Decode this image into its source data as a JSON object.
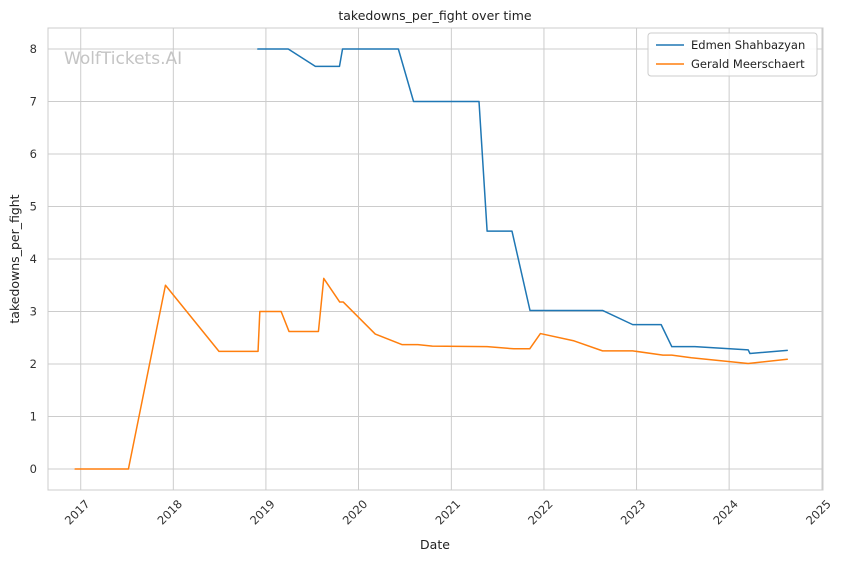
{
  "colors": {
    "background": "#ffffff",
    "grid": "#cccccc",
    "frame": "#cccccc",
    "series_1": "#1f77b4",
    "series_2": "#ff7f0e",
    "watermark": "#c4c4c4"
  },
  "watermark": "WolfTickets.AI",
  "chart_data": {
    "type": "line",
    "title": "takedowns_per_fight over time",
    "xlabel": "Date",
    "ylabel": "takedowns_per_fight",
    "x_axis": "date",
    "xlim": [
      "2016-08-25",
      "2025-01-05"
    ],
    "ylim": [
      -0.4,
      8.4
    ],
    "x_ticks": [
      "2017-01-01",
      "2018-01-01",
      "2019-01-01",
      "2020-01-01",
      "2021-01-01",
      "2022-01-01",
      "2023-01-01",
      "2024-01-01",
      "2025-01-01"
    ],
    "x_tick_labels": [
      "2017",
      "2018",
      "2019",
      "2020",
      "2021",
      "2022",
      "2023",
      "2024",
      "2025"
    ],
    "y_ticks": [
      0,
      1,
      2,
      3,
      4,
      5,
      6,
      7,
      8
    ],
    "y_tick_labels": [
      "0",
      "1",
      "2",
      "3",
      "4",
      "5",
      "6",
      "7",
      "8"
    ],
    "grid": true,
    "legend_position": "top-right",
    "series": [
      {
        "name": "Edmen Shahbazyan",
        "color": "#1f77b4",
        "points": [
          [
            "2018-11-30",
            8.0
          ],
          [
            "2019-03-30",
            8.0
          ],
          [
            "2019-07-15",
            7.67
          ],
          [
            "2019-10-18",
            7.67
          ],
          [
            "2019-10-30",
            8.0
          ],
          [
            "2020-06-06",
            8.0
          ],
          [
            "2020-08-05",
            7.0
          ],
          [
            "2021-04-20",
            7.0
          ],
          [
            "2021-05-22",
            4.53
          ],
          [
            "2021-08-28",
            4.53
          ],
          [
            "2021-11-07",
            3.02
          ],
          [
            "2022-08-20",
            3.02
          ],
          [
            "2022-12-17",
            2.75
          ],
          [
            "2023-04-08",
            2.75
          ],
          [
            "2023-05-20",
            2.33
          ],
          [
            "2023-08-19",
            2.33
          ],
          [
            "2024-03-16",
            2.27
          ],
          [
            "2024-03-23",
            2.2
          ],
          [
            "2024-08-17",
            2.26
          ]
        ]
      },
      {
        "name": "Gerald Meerschaert",
        "color": "#ff7f0e",
        "points": [
          [
            "2016-12-10",
            0.0
          ],
          [
            "2017-07-08",
            0.0
          ],
          [
            "2017-12-01",
            3.5
          ],
          [
            "2018-06-30",
            2.24
          ],
          [
            "2018-12-01",
            2.24
          ],
          [
            "2018-12-08",
            3.0
          ],
          [
            "2019-03-02",
            3.0
          ],
          [
            "2019-04-02",
            2.62
          ],
          [
            "2019-07-27",
            2.62
          ],
          [
            "2019-08-17",
            3.63
          ],
          [
            "2019-10-19",
            3.18
          ],
          [
            "2019-11-02",
            3.18
          ],
          [
            "2020-03-07",
            2.57
          ],
          [
            "2020-06-20",
            2.37
          ],
          [
            "2020-08-22",
            2.37
          ],
          [
            "2020-10-18",
            2.34
          ],
          [
            "2021-05-22",
            2.33
          ],
          [
            "2021-09-04",
            2.29
          ],
          [
            "2021-11-06",
            2.29
          ],
          [
            "2021-12-18",
            2.58
          ],
          [
            "2022-04-30",
            2.44
          ],
          [
            "2022-08-20",
            2.25
          ],
          [
            "2022-12-17",
            2.25
          ],
          [
            "2023-04-15",
            2.17
          ],
          [
            "2023-05-20",
            2.17
          ],
          [
            "2023-08-05",
            2.12
          ],
          [
            "2024-03-16",
            2.01
          ],
          [
            "2024-08-17",
            2.09
          ]
        ]
      }
    ]
  }
}
